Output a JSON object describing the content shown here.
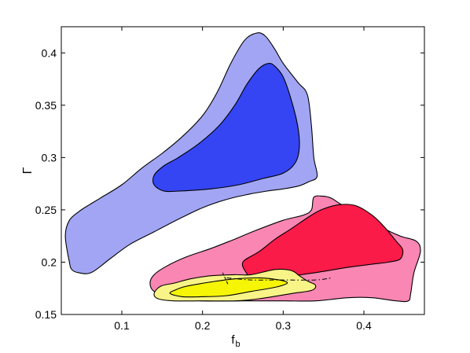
{
  "chart_data": {
    "type": "contour",
    "title": "",
    "xlabel": "f",
    "xlabel_sub": "b",
    "ylabel": "Γ",
    "xlim": [
      0.025,
      0.475
    ],
    "ylim": [
      0.15,
      0.425
    ],
    "xticks": [
      0.1,
      0.2,
      0.3,
      0.4
    ],
    "xtick_labels": [
      "0.1",
      "0.2",
      "0.3",
      "0.4"
    ],
    "yticks": [
      0.15,
      0.2,
      0.25,
      0.3,
      0.35,
      0.4
    ],
    "ytick_labels": [
      "0.15",
      "0.2",
      "0.25",
      "0.3",
      "0.35",
      "0.4"
    ],
    "grid": false,
    "regions": [
      {
        "color": "#a1a5f3",
        "points": [
          [
            0.035,
            0.2
          ],
          [
            0.03,
            0.225
          ],
          [
            0.035,
            0.24
          ],
          [
            0.048,
            0.249
          ],
          [
            0.06,
            0.255
          ],
          [
            0.075,
            0.262
          ],
          [
            0.1,
            0.274
          ],
          [
            0.125,
            0.29
          ],
          [
            0.15,
            0.304
          ],
          [
            0.175,
            0.32
          ],
          [
            0.2,
            0.34
          ],
          [
            0.218,
            0.362
          ],
          [
            0.235,
            0.39
          ],
          [
            0.252,
            0.412
          ],
          [
            0.267,
            0.419
          ],
          [
            0.278,
            0.416
          ],
          [
            0.29,
            0.403
          ],
          [
            0.3,
            0.39
          ],
          [
            0.318,
            0.372
          ],
          [
            0.33,
            0.36
          ],
          [
            0.335,
            0.33
          ],
          [
            0.338,
            0.3
          ],
          [
            0.342,
            0.282
          ],
          [
            0.332,
            0.277
          ],
          [
            0.32,
            0.273
          ],
          [
            0.3,
            0.27
          ],
          [
            0.28,
            0.268
          ],
          [
            0.258,
            0.265
          ],
          [
            0.23,
            0.26
          ],
          [
            0.2,
            0.252
          ],
          [
            0.17,
            0.241
          ],
          [
            0.14,
            0.229
          ],
          [
            0.11,
            0.217
          ],
          [
            0.085,
            0.203
          ],
          [
            0.062,
            0.19
          ],
          [
            0.046,
            0.19
          ],
          [
            0.038,
            0.193
          ]
        ]
      },
      {
        "color": "#3545f4",
        "points": [
          [
            0.14,
            0.283
          ],
          [
            0.14,
            0.274
          ],
          [
            0.152,
            0.268
          ],
          [
            0.172,
            0.268
          ],
          [
            0.21,
            0.27
          ],
          [
            0.245,
            0.274
          ],
          [
            0.275,
            0.28
          ],
          [
            0.3,
            0.285
          ],
          [
            0.315,
            0.295
          ],
          [
            0.32,
            0.31
          ],
          [
            0.318,
            0.33
          ],
          [
            0.31,
            0.355
          ],
          [
            0.3,
            0.377
          ],
          [
            0.29,
            0.387
          ],
          [
            0.282,
            0.39
          ],
          [
            0.27,
            0.385
          ],
          [
            0.255,
            0.37
          ],
          [
            0.24,
            0.35
          ],
          [
            0.22,
            0.33
          ],
          [
            0.195,
            0.313
          ],
          [
            0.17,
            0.3
          ],
          [
            0.152,
            0.292
          ]
        ]
      },
      {
        "color": "#f986b3",
        "points": [
          [
            0.135,
            0.18
          ],
          [
            0.14,
            0.172
          ],
          [
            0.16,
            0.166
          ],
          [
            0.2,
            0.163
          ],
          [
            0.25,
            0.163
          ],
          [
            0.3,
            0.163
          ],
          [
            0.34,
            0.163
          ],
          [
            0.38,
            0.166
          ],
          [
            0.41,
            0.166
          ],
          [
            0.44,
            0.163
          ],
          [
            0.455,
            0.163
          ],
          [
            0.458,
            0.17
          ],
          [
            0.462,
            0.19
          ],
          [
            0.47,
            0.21
          ],
          [
            0.465,
            0.22
          ],
          [
            0.445,
            0.225
          ],
          [
            0.42,
            0.234
          ],
          [
            0.4,
            0.243
          ],
          [
            0.385,
            0.25
          ],
          [
            0.37,
            0.256
          ],
          [
            0.36,
            0.261
          ],
          [
            0.35,
            0.263
          ],
          [
            0.338,
            0.262
          ],
          [
            0.335,
            0.25
          ],
          [
            0.325,
            0.245
          ],
          [
            0.3,
            0.24
          ],
          [
            0.265,
            0.23
          ],
          [
            0.24,
            0.222
          ],
          [
            0.21,
            0.213
          ],
          [
            0.18,
            0.205
          ],
          [
            0.155,
            0.196
          ],
          [
            0.14,
            0.188
          ]
        ]
      },
      {
        "color": "#fa1b48",
        "points": [
          [
            0.25,
            0.2
          ],
          [
            0.255,
            0.189
          ],
          [
            0.26,
            0.186
          ],
          [
            0.275,
            0.185
          ],
          [
            0.3,
            0.186
          ],
          [
            0.34,
            0.19
          ],
          [
            0.38,
            0.195
          ],
          [
            0.41,
            0.198
          ],
          [
            0.43,
            0.2
          ],
          [
            0.445,
            0.203
          ],
          [
            0.448,
            0.212
          ],
          [
            0.44,
            0.22
          ],
          [
            0.425,
            0.234
          ],
          [
            0.41,
            0.245
          ],
          [
            0.39,
            0.254
          ],
          [
            0.37,
            0.255
          ],
          [
            0.35,
            0.251
          ],
          [
            0.335,
            0.245
          ],
          [
            0.31,
            0.232
          ],
          [
            0.29,
            0.222
          ],
          [
            0.27,
            0.21
          ]
        ]
      },
      {
        "color": "#f9f487",
        "points": [
          [
            0.14,
            0.17
          ],
          [
            0.145,
            0.165
          ],
          [
            0.165,
            0.163
          ],
          [
            0.2,
            0.163
          ],
          [
            0.24,
            0.163
          ],
          [
            0.27,
            0.165
          ],
          [
            0.31,
            0.17
          ],
          [
            0.335,
            0.173
          ],
          [
            0.34,
            0.178
          ],
          [
            0.33,
            0.182
          ],
          [
            0.32,
            0.187
          ],
          [
            0.31,
            0.192
          ],
          [
            0.29,
            0.193
          ],
          [
            0.26,
            0.188
          ],
          [
            0.24,
            0.188
          ],
          [
            0.21,
            0.187
          ],
          [
            0.185,
            0.184
          ],
          [
            0.165,
            0.18
          ],
          [
            0.148,
            0.177
          ]
        ]
      },
      {
        "color": "#f5f505",
        "points": [
          [
            0.16,
            0.17
          ],
          [
            0.175,
            0.167
          ],
          [
            0.2,
            0.167
          ],
          [
            0.23,
            0.168
          ],
          [
            0.26,
            0.172
          ],
          [
            0.29,
            0.176
          ],
          [
            0.305,
            0.18
          ],
          [
            0.295,
            0.183
          ],
          [
            0.27,
            0.185
          ],
          [
            0.24,
            0.184
          ],
          [
            0.21,
            0.181
          ],
          [
            0.18,
            0.177
          ],
          [
            0.165,
            0.173
          ]
        ]
      }
    ],
    "dashed_line": [
      [
        0.23,
        0.185
      ],
      [
        0.26,
        0.183
      ],
      [
        0.3,
        0.183
      ],
      [
        0.34,
        0.183
      ],
      [
        0.36,
        0.185
      ]
    ],
    "dashed_line_drop": [
      [
        0.225,
        0.19
      ],
      [
        0.232,
        0.178
      ]
    ]
  }
}
